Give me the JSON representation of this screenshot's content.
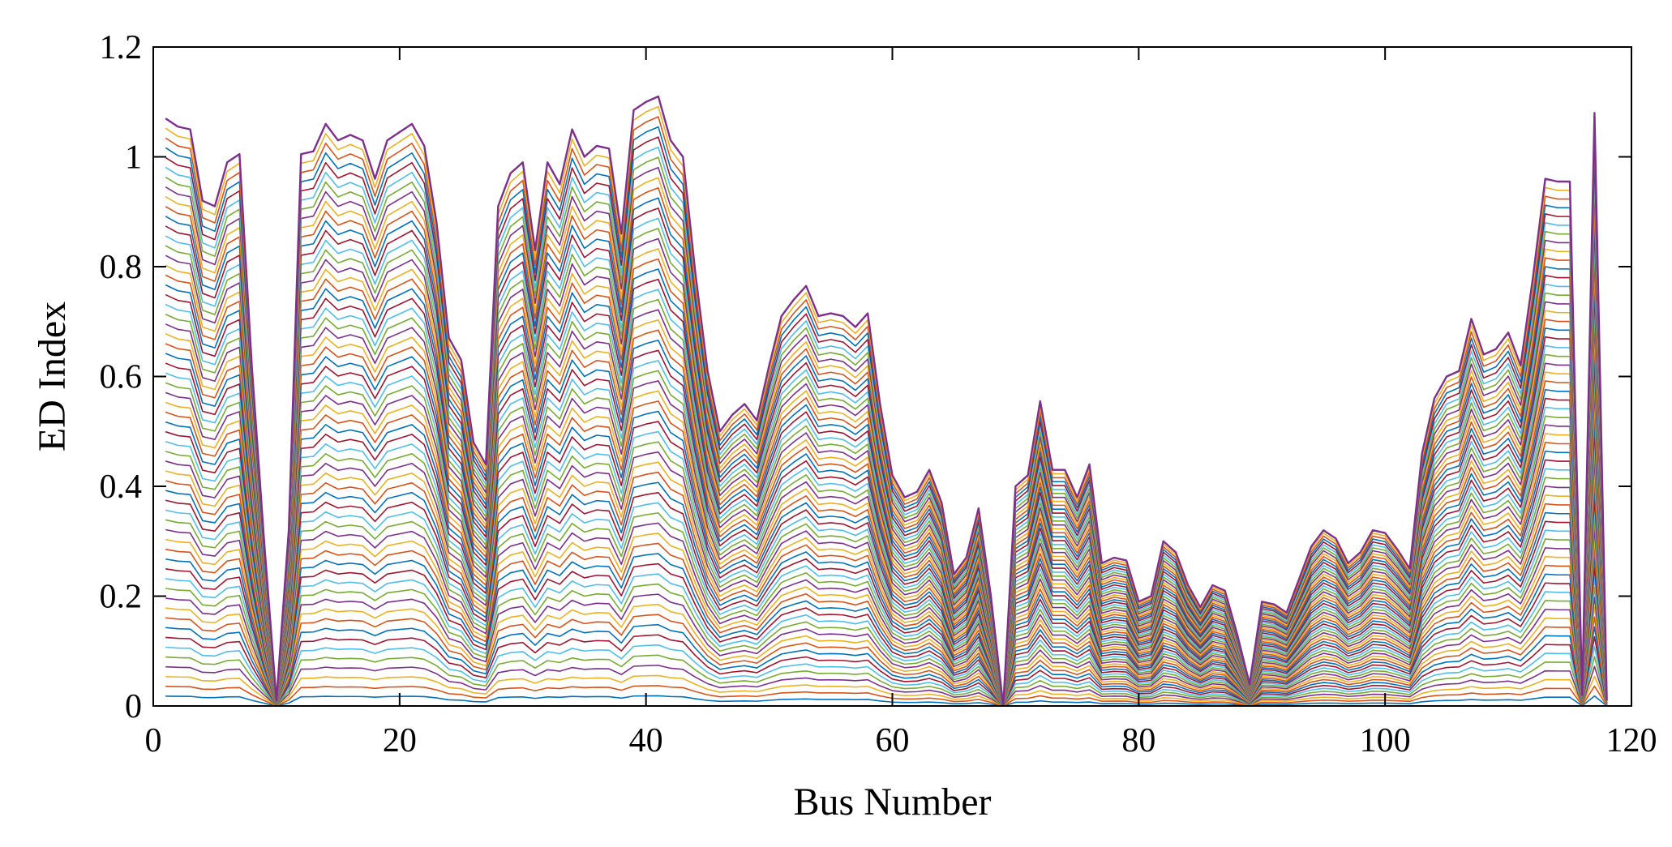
{
  "chart_data": {
    "type": "line",
    "xlabel": "Bus Number",
    "ylabel": "ED Index",
    "xlim": [
      0,
      120
    ],
    "ylim": [
      0,
      1.2
    ],
    "xticks": [
      0,
      20,
      40,
      60,
      80,
      100,
      120
    ],
    "xtick_labels": [
      "0",
      "20",
      "40",
      "60",
      "80",
      "100",
      "120"
    ],
    "yticks": [
      0,
      0.2,
      0.4,
      0.6,
      0.8,
      1.0,
      1.2
    ],
    "ytick_labels": [
      "0",
      "0.2",
      "0.4",
      "0.6",
      "0.8",
      "1",
      "1.2"
    ],
    "grid": false,
    "box": true,
    "series_count": 60,
    "series_scaling": "each series = upper envelope scaled linearly by k/60, k = 1..60",
    "series_colors": [
      "#0072BD",
      "#D95319",
      "#EDB120",
      "#7E2F8E",
      "#77AC30",
      "#4DBEEE",
      "#A2142F"
    ],
    "envelope": {
      "x": [
        1,
        2,
        3,
        4,
        5,
        6,
        7,
        8,
        9,
        10,
        11,
        12,
        13,
        14,
        15,
        16,
        17,
        18,
        19,
        20,
        21,
        22,
        23,
        24,
        25,
        26,
        27,
        28,
        29,
        30,
        31,
        32,
        33,
        34,
        35,
        36,
        37,
        38,
        39,
        40,
        41,
        42,
        43,
        44,
        45,
        46,
        47,
        48,
        49,
        50,
        51,
        52,
        53,
        54,
        55,
        56,
        57,
        58,
        59,
        60,
        61,
        62,
        63,
        64,
        65,
        66,
        67,
        68,
        69,
        70,
        71,
        72,
        73,
        74,
        75,
        76,
        77,
        78,
        79,
        80,
        81,
        82,
        83,
        84,
        85,
        86,
        87,
        88,
        89,
        90,
        91,
        92,
        93,
        94,
        95,
        96,
        97,
        98,
        99,
        100,
        101,
        102,
        103,
        104,
        105,
        106,
        107,
        108,
        109,
        110,
        111,
        112,
        113,
        114,
        115,
        116,
        117,
        118
      ],
      "y": [
        1.07,
        1.055,
        1.05,
        0.92,
        0.91,
        0.99,
        1.005,
        0.62,
        0.3,
        0.01,
        0.32,
        1.005,
        1.01,
        1.06,
        1.03,
        1.04,
        1.03,
        0.96,
        1.03,
        1.045,
        1.06,
        1.02,
        0.88,
        0.67,
        0.63,
        0.48,
        0.44,
        0.91,
        0.97,
        0.99,
        0.83,
        0.99,
        0.95,
        1.05,
        1.0,
        1.02,
        1.015,
        0.86,
        1.085,
        1.1,
        1.11,
        1.03,
        1.0,
        0.79,
        0.61,
        0.5,
        0.53,
        0.55,
        0.52,
        0.62,
        0.71,
        0.74,
        0.765,
        0.71,
        0.715,
        0.71,
        0.69,
        0.715,
        0.55,
        0.42,
        0.38,
        0.39,
        0.43,
        0.37,
        0.24,
        0.27,
        0.36,
        0.2,
        0.0,
        0.4,
        0.42,
        0.555,
        0.43,
        0.43,
        0.38,
        0.44,
        0.26,
        0.27,
        0.265,
        0.19,
        0.2,
        0.3,
        0.28,
        0.22,
        0.18,
        0.22,
        0.21,
        0.13,
        0.04,
        0.19,
        0.185,
        0.17,
        0.23,
        0.29,
        0.32,
        0.305,
        0.26,
        0.28,
        0.32,
        0.315,
        0.285,
        0.25,
        0.46,
        0.56,
        0.6,
        0.61,
        0.705,
        0.64,
        0.65,
        0.68,
        0.62,
        0.78,
        0.96,
        0.955,
        0.955,
        0.02,
        1.08,
        0.01
      ]
    }
  }
}
